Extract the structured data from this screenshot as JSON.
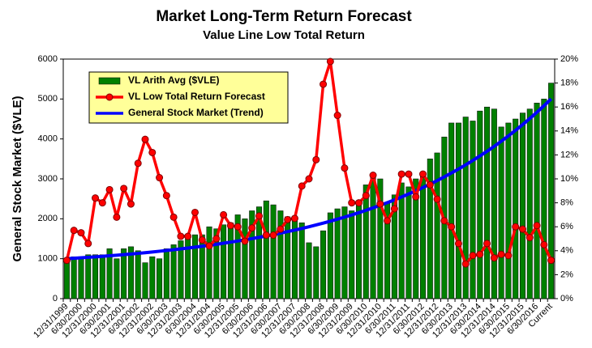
{
  "chart_data": {
    "type": "combo",
    "title": "Market Long-Term Return Forecast",
    "subtitle": "Value Line Low Total Return",
    "y_label": "General Stock Market ($VLE)",
    "categories": [
      "12/31/1999",
      null,
      "6/30/2000",
      null,
      "12/31/2000",
      null,
      "6/30/2001",
      null,
      "12/31/2001",
      null,
      "6/30/2002",
      null,
      "12/31/2002",
      null,
      "6/30/2003",
      null,
      "12/31/2003",
      null,
      "6/30/2004",
      null,
      "12/31/2004",
      null,
      "6/30/2005",
      null,
      "12/31/2005",
      null,
      "6/30/2006",
      null,
      "12/31/2006",
      null,
      "6/30/2007",
      null,
      "12/31/2007",
      null,
      "6/30/2008",
      null,
      "12/31/2008",
      null,
      "6/30/2009",
      null,
      "12/31/2009",
      null,
      "6/30/2010",
      null,
      "12/31/2010",
      null,
      "6/30/2011",
      null,
      "12/31/2011",
      null,
      "6/30/2012",
      null,
      "12/31/2012",
      null,
      "6/30/2013",
      null,
      "12/31/2013",
      null,
      "6/30/2014",
      null,
      "12/31/2014",
      null,
      "6/30/2015",
      null,
      "12/31/2015",
      null,
      "6/30/2016",
      null,
      "Current"
    ],
    "series": [
      {
        "name": "VL Arith Avg ($VLE)",
        "type": "bar",
        "color": "#008000",
        "values": [
          1000,
          1050,
          1050,
          1100,
          1100,
          1100,
          1250,
          1000,
          1250,
          1300,
          1200,
          900,
          1050,
          1000,
          1250,
          1350,
          1450,
          1500,
          1600,
          1600,
          1800,
          1750,
          1850,
          1900,
          2100,
          2000,
          2200,
          2300,
          2450,
          2350,
          2200,
          2050,
          2000,
          1900,
          1400,
          1300,
          1700,
          2150,
          2250,
          2300,
          2200,
          2450,
          2850,
          3050,
          3000,
          2400,
          2600,
          2900,
          2800,
          3000,
          3150,
          3500,
          3650,
          4050,
          4400,
          4400,
          4550,
          4450,
          4700,
          4800,
          4750,
          4300,
          4400,
          4500,
          4650,
          4750,
          4900,
          5000,
          5400
        ]
      },
      {
        "name": "VL Low Total Return Forecast",
        "type": "line",
        "axis": "y2",
        "color": "#ff0000",
        "values": [
          3.2,
          5.7,
          5.5,
          4.6,
          8.4,
          8.0,
          9.1,
          6.8,
          9.2,
          7.9,
          11.3,
          13.3,
          12.2,
          10.1,
          8.6,
          6.8,
          5.2,
          5.2,
          7.2,
          4.9,
          4.4,
          5.0,
          7.0,
          6.1,
          6.0,
          4.8,
          5.9,
          6.9,
          5.3,
          5.3,
          5.8,
          6.6,
          6.7,
          9.4,
          10.0,
          11.6,
          17.9,
          19.8,
          15.3,
          10.9,
          8.0,
          8.0,
          8.6,
          10.3,
          7.9,
          6.5,
          7.5,
          10.4,
          10.4,
          8.5,
          10.4,
          9.5,
          8.3,
          6.5,
          6.0,
          4.6,
          2.9,
          3.6,
          3.7,
          4.6,
          3.4,
          3.7,
          3.6,
          6.0,
          5.8,
          5.1,
          6.1,
          4.5,
          3.2
        ]
      },
      {
        "name": "General Stock Market (Trend)",
        "type": "line",
        "color": "#0000ff",
        "values": [
          1000,
          1011,
          1023,
          1035,
          1047,
          1060,
          1074,
          1088,
          1103,
          1118,
          1134,
          1151,
          1168,
          1187,
          1205,
          1225,
          1246,
          1267,
          1289,
          1312,
          1336,
          1361,
          1388,
          1415,
          1443,
          1473,
          1504,
          1536,
          1569,
          1604,
          1640,
          1678,
          1717,
          1758,
          1801,
          1845,
          1891,
          1940,
          1990,
          2042,
          2096,
          2153,
          2212,
          2274,
          2338,
          2405,
          2474,
          2547,
          2622,
          2701,
          2783,
          2868,
          2957,
          3049,
          3146,
          3246,
          3351,
          3460,
          3573,
          3691,
          3814,
          3942,
          4076,
          4215,
          4360,
          4511,
          4668,
          4832,
          5002
        ]
      }
    ],
    "ylim": [
      0,
      6000
    ],
    "yticks": [
      0,
      1000,
      2000,
      3000,
      4000,
      5000,
      6000
    ],
    "y2lim": [
      0,
      20
    ],
    "y2ticks": [
      {
        "value": 0,
        "label": "0%"
      },
      {
        "value": 2,
        "label": "2%"
      },
      {
        "value": 4,
        "label": "4%"
      },
      {
        "value": 6,
        "label": "6%"
      },
      {
        "value": 8,
        "label": "8%"
      },
      {
        "value": 10,
        "label": "10%"
      },
      {
        "value": 12,
        "label": "12%"
      },
      {
        "value": 14,
        "label": "14%"
      },
      {
        "value": 16,
        "label": "16%"
      },
      {
        "value": 18,
        "label": "18%"
      },
      {
        "value": 20,
        "label": "20%"
      }
    ],
    "legend": "upper left",
    "legend_color": "#ffff99"
  }
}
